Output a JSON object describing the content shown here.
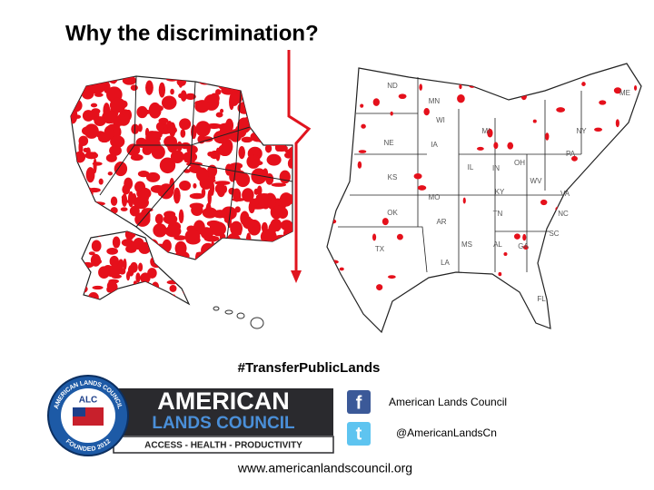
{
  "title": "Why the discrimination?",
  "map": {
    "state_labels": [
      "ND",
      "MN",
      "WI",
      "MI",
      "NE",
      "IA",
      "IL",
      "IN",
      "OH",
      "PA",
      "NY",
      "ME",
      "KS",
      "MO",
      "KY",
      "WV",
      "VA",
      "OK",
      "AR",
      "TN",
      "NC",
      "SC",
      "MS",
      "AL",
      "GA",
      "TX",
      "LA",
      "FL"
    ]
  },
  "hashtag": "#TransferPublicLands",
  "logo": {
    "badge_top": "AMERICAN LANDS COUNCIL",
    "badge_center": "ALC",
    "badge_bottom": "FOUNDED 2012",
    "name_line1": "AMERICAN",
    "name_line2": "LANDS COUNCIL",
    "tagline": "ACCESS - HEALTH - PRODUCTIVITY"
  },
  "social": {
    "facebook_icon": "f",
    "facebook": "American Lands Council",
    "twitter_icon": "t",
    "twitter": "@AmericanLandsCn"
  },
  "website": "www.americanlandscouncil.org"
}
